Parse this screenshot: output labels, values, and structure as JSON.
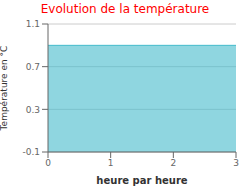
{
  "chart_data": {
    "type": "area",
    "title": "Evolution de la température",
    "title_color": "#ff0000",
    "xlabel": "heure par heure",
    "ylabel": "Température en °C",
    "x": [
      0,
      3
    ],
    "values": [
      0.9,
      0.9
    ],
    "color": "#44bbcc",
    "xlim": [
      0,
      3
    ],
    "ylim": [
      -0.1,
      1.1
    ],
    "xticks": [
      0,
      1,
      2,
      3
    ],
    "yticks": [
      -0.1,
      0.3,
      0.7,
      1.1
    ],
    "grid": true
  }
}
